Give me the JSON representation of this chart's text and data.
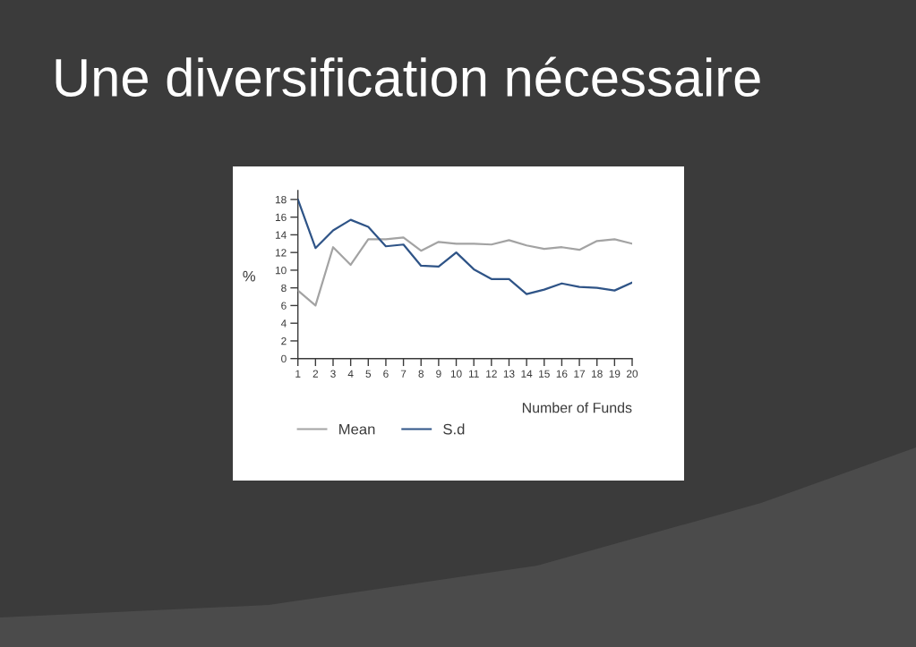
{
  "chart_data": {
    "type": "line",
    "title": "Une diversification nécessaire",
    "xlabel": "Number of Funds",
    "ylabel": "%",
    "x": [
      1,
      2,
      3,
      4,
      5,
      6,
      7,
      8,
      9,
      10,
      11,
      12,
      13,
      14,
      15,
      16,
      17,
      18,
      19,
      20
    ],
    "xlim": [
      1,
      20
    ],
    "xticks": [
      1,
      2,
      3,
      4,
      5,
      6,
      7,
      8,
      9,
      10,
      11,
      12,
      13,
      14,
      15,
      16,
      17,
      18,
      19,
      20
    ],
    "ylim": [
      0,
      19
    ],
    "yticks": [
      0,
      2,
      4,
      6,
      8,
      10,
      12,
      14,
      16,
      18
    ],
    "legend": "bottom",
    "series": [
      {
        "name": "Mean",
        "color": "#a3a3a3",
        "values": [
          7.7,
          6.0,
          12.6,
          10.6,
          13.5,
          13.5,
          13.7,
          12.2,
          13.2,
          13.0,
          13.0,
          12.9,
          13.4,
          12.8,
          12.4,
          12.6,
          12.3,
          13.3,
          13.5,
          13.0
        ]
      },
      {
        "name": "S.d",
        "color": "#2f5487",
        "values": [
          18.0,
          12.5,
          14.5,
          15.7,
          14.9,
          12.7,
          12.9,
          10.5,
          10.4,
          12.0,
          10.1,
          9.0,
          9.0,
          7.3,
          7.8,
          8.5,
          8.1,
          8.0,
          7.7,
          8.6
        ]
      }
    ]
  }
}
